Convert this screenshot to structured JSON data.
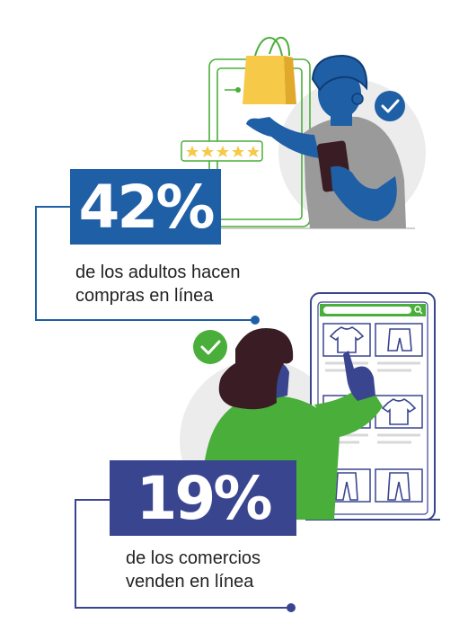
{
  "stats": [
    {
      "value": "42%",
      "caption_line1": "de los adultos hacen",
      "caption_line2": "compras en línea"
    },
    {
      "value": "19%",
      "caption_line1": "de los comercios",
      "caption_line2": "venden en línea"
    }
  ],
  "colors": {
    "blue_primary": "#1f5fa6",
    "indigo": "#3a4590",
    "green": "#4aae3a",
    "gray_bg": "#ececec",
    "yellow": "#f7c948",
    "shirt_gray": "#9a9a9a",
    "hair_dark": "#3a1d24"
  },
  "icons": [
    "shopping-bag-icon",
    "rating-stars-icon",
    "check-badge-icon",
    "smartphone-icon",
    "tablet-shop-icon",
    "tshirt-icon",
    "shorts-icon",
    "pants-icon",
    "search-icon"
  ],
  "rating": {
    "stars": 5,
    "max": 5
  }
}
